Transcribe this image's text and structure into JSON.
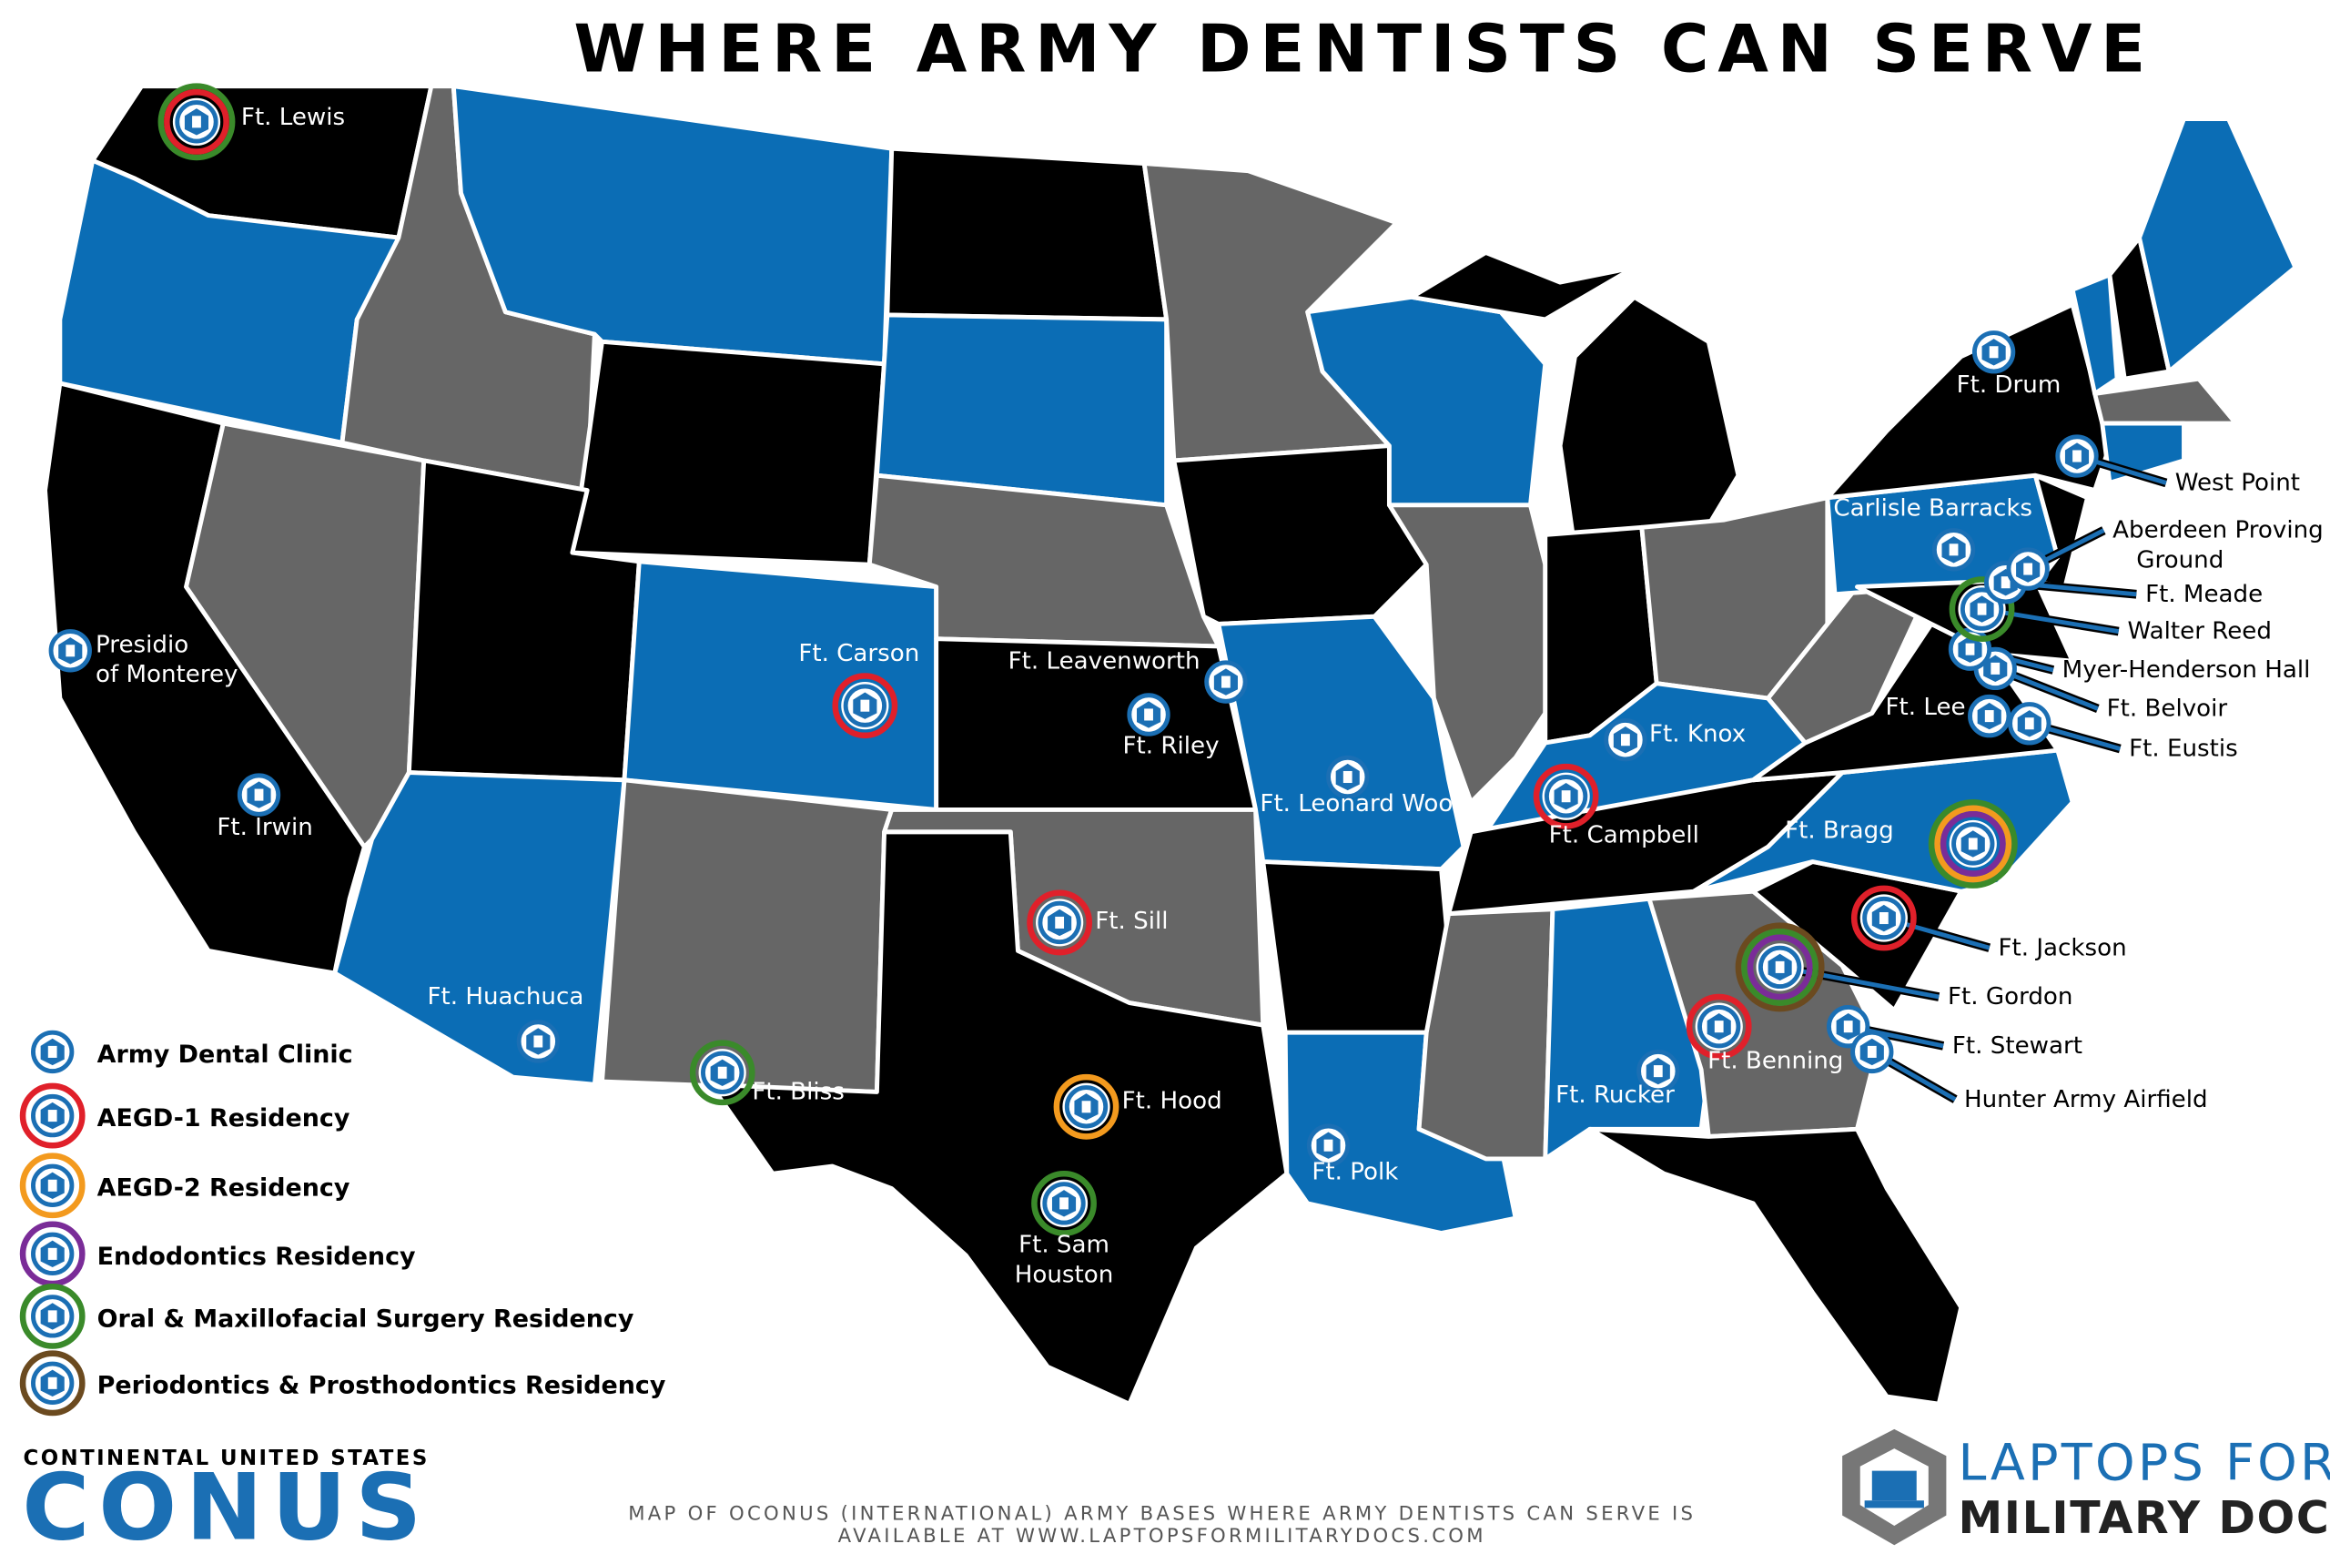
{
  "header": {
    "title": "WHERE ARMY DENTISTS CAN SERVE"
  },
  "legend": [
    {
      "label": "Army Dental Clinic",
      "color": "#1b6fb4"
    },
    {
      "label": "AEGD-1 Residency",
      "color": "#e0202a"
    },
    {
      "label": "AEGD-2 Residency",
      "color": "#f39a1e"
    },
    {
      "label": "Endodontics Residency",
      "color": "#7a2c98"
    },
    {
      "label": "Oral & Maxillofacial Surgery Residency",
      "color": "#3a8a2a"
    },
    {
      "label": "Periodontics & Prosthodontics Residency",
      "color": "#6b4a1f"
    }
  ],
  "bases": [
    {
      "lines": [
        "Ft. Lewis"
      ]
    },
    {
      "lines": [
        "Presidio",
        "of Monterey"
      ]
    },
    {
      "lines": [
        "Ft. Irwin"
      ]
    },
    {
      "lines": [
        "Ft. Carson"
      ]
    },
    {
      "lines": [
        "Ft. Leavenworth"
      ]
    },
    {
      "lines": [
        "Ft. Riley"
      ]
    },
    {
      "lines": [
        "Ft. Leonard Wood"
      ]
    },
    {
      "lines": [
        "Ft. Huachuca"
      ]
    },
    {
      "lines": [
        "Ft. Bliss"
      ]
    },
    {
      "lines": [
        "Ft. Sill"
      ]
    },
    {
      "lines": [
        "Ft. Hood"
      ]
    },
    {
      "lines": [
        "Ft. Sam",
        "Houston"
      ]
    },
    {
      "lines": [
        "Ft. Polk"
      ]
    },
    {
      "lines": [
        "Ft. Rucker"
      ]
    },
    {
      "lines": [
        "Ft. Benning"
      ]
    },
    {
      "lines": [
        "Ft. Campbell"
      ]
    },
    {
      "lines": [
        "Ft. Knox"
      ]
    },
    {
      "lines": [
        "Ft. Bragg"
      ]
    },
    {
      "lines": [
        "Ft. Jackson"
      ]
    },
    {
      "lines": [
        "Ft. Gordon"
      ]
    },
    {
      "lines": [
        "Ft. Stewart"
      ]
    },
    {
      "lines": [
        "Hunter Army Airfield"
      ]
    },
    {
      "lines": [
        "Ft. Lee"
      ]
    },
    {
      "lines": [
        "Ft. Eustis"
      ]
    },
    {
      "lines": [
        "Ft. Belvoir"
      ]
    },
    {
      "lines": [
        "Myer-Henderson Hall"
      ]
    },
    {
      "lines": [
        "Walter Reed"
      ]
    },
    {
      "lines": [
        "Ft. Meade"
      ]
    },
    {
      "lines": [
        "Aberdeen Proving",
        "Ground"
      ]
    },
    {
      "lines": [
        "Carlisle Barracks"
      ]
    },
    {
      "lines": [
        "West Point"
      ]
    },
    {
      "lines": [
        "Ft. Drum"
      ]
    }
  ],
  "footer": {
    "region": "CONTINENTAL UNITED STATES",
    "code": "CONUS",
    "note": [
      "MAP OF OCONUS (INTERNATIONAL) ARMY BASES WHERE ARMY DENTISTS CAN SERVE IS",
      "AVAILABLE AT WWW.LAPTOPSFORMILITARYDOCS.COM"
    ],
    "logo": [
      "LAPTOPS FOR",
      "MILITARY DOCS"
    ]
  }
}
